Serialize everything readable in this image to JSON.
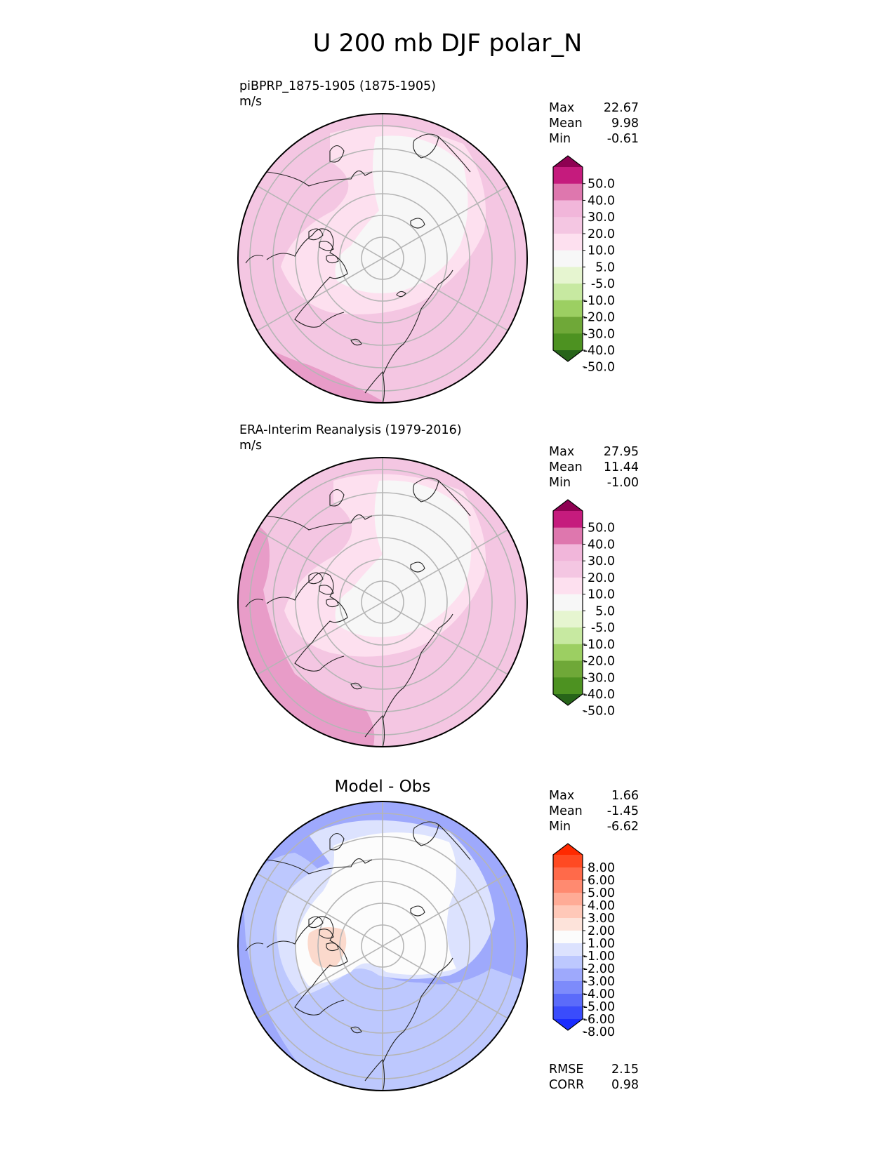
{
  "title": "U 200 mb DJF polar_N",
  "panels": [
    {
      "id": "test",
      "title": "piBPRP_1875-1905 (1875-1905)",
      "units": "m/s",
      "stats": [
        {
          "label": "Max",
          "value": "22.67"
        },
        {
          "label": "Mean",
          "value": "9.98"
        },
        {
          "label": "Min",
          "value": "-0.61"
        }
      ]
    },
    {
      "id": "ref",
      "title": "ERA-Interim Reanalysis (1979-2016)",
      "units": "m/s",
      "stats": [
        {
          "label": "Max",
          "value": "27.95"
        },
        {
          "label": "Mean",
          "value": "11.44"
        },
        {
          "label": "Min",
          "value": "-1.00"
        }
      ]
    },
    {
      "id": "diff",
      "title": "Model - Obs",
      "stats": [
        {
          "label": "Max",
          "value": "1.66"
        },
        {
          "label": "Mean",
          "value": "-1.45"
        },
        {
          "label": "Min",
          "value": "-6.62"
        }
      ],
      "metrics": [
        {
          "label": "RMSE",
          "value": "2.15"
        },
        {
          "label": "CORR",
          "value": "0.98"
        }
      ]
    }
  ],
  "colorbars": {
    "field": {
      "labels": [
        "50.0",
        "40.0",
        "30.0",
        "20.0",
        "10.0",
        "5.0",
        "-5.0",
        "-10.0",
        "-20.0",
        "-30.0",
        "-40.0",
        "-50.0"
      ],
      "colors": [
        "#8e0152",
        "#c51b7d",
        "#de77ae",
        "#f1b6da",
        "#f4c6e2",
        "#fde0ef",
        "#f7f7f7",
        "#e6f5d0",
        "#c7e9a1",
        "#9ccf62",
        "#6fa838",
        "#4d9221",
        "#276419"
      ]
    },
    "diff": {
      "labels": [
        "8.00",
        "6.00",
        "5.00",
        "4.00",
        "3.00",
        "2.00",
        "1.00",
        "-1.00",
        "-2.00",
        "-3.00",
        "-4.00",
        "-5.00",
        "-6.00",
        "-8.00"
      ],
      "colors": [
        "#ff2a00",
        "#ff4a22",
        "#ff6a4a",
        "#ff8a70",
        "#ffab96",
        "#ffc8b8",
        "#fde3da",
        "#fcfcfc",
        "#dce2fe",
        "#bdc8fe",
        "#9ea9fc",
        "#7d8bfb",
        "#5b6bfa",
        "#3a4cfc",
        "#1a2cff"
      ]
    }
  },
  "chart_data": [
    {
      "type": "heatmap",
      "projection": "north-polar-stereographic",
      "variable": "U 200 mb",
      "season": "DJF",
      "title": "piBPRP_1875-1905 (1875-1905)",
      "units": "m/s",
      "levels": [
        -50,
        -40,
        -30,
        -20,
        -10,
        -5,
        5,
        10,
        20,
        30,
        40,
        50
      ],
      "max": 22.67,
      "mean": 9.98,
      "min": -0.61
    },
    {
      "type": "heatmap",
      "projection": "north-polar-stereographic",
      "variable": "U 200 mb",
      "season": "DJF",
      "title": "ERA-Interim Reanalysis (1979-2016)",
      "units": "m/s",
      "levels": [
        -50,
        -40,
        -30,
        -20,
        -10,
        -5,
        5,
        10,
        20,
        30,
        40,
        50
      ],
      "max": 27.95,
      "mean": 11.44,
      "min": -1.0
    },
    {
      "type": "heatmap",
      "projection": "north-polar-stereographic",
      "title": "Model - Obs",
      "levels": [
        -8,
        -6,
        -5,
        -4,
        -3,
        -2,
        -1,
        1,
        2,
        3,
        4,
        5,
        6,
        8
      ],
      "max": 1.66,
      "mean": -1.45,
      "min": -6.62,
      "rmse": 2.15,
      "corr": 0.98
    }
  ]
}
